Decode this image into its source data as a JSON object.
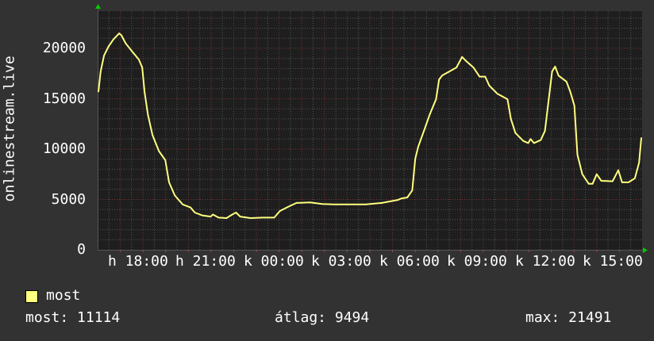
{
  "chart_data": {
    "type": "line",
    "ylabel": "onlinestream.live",
    "ylim": [
      0,
      23700
    ],
    "yticks": [
      0,
      5000,
      10000,
      15000,
      20000
    ],
    "ytick_labels": [
      "0",
      "5000",
      "10000",
      "15000",
      "20000"
    ],
    "xlim": [
      "16:00",
      "16:00 (+24h)"
    ],
    "xtick_labels": [
      "h 18:00",
      "h 21:00",
      "k 00:00",
      "k 03:00",
      "k 06:00",
      "k 09:00",
      "k 12:00",
      "k 15:00"
    ],
    "xtick_times": [
      "18:00",
      "21:00",
      "00:00",
      "03:00",
      "06:00",
      "09:00",
      "12:00",
      "15:00"
    ],
    "grid": true,
    "legend_position": "bottom-left",
    "colors": {
      "background": "#323232",
      "plot_background": "#1e1e1e",
      "line": "#ffff80",
      "grid_minor": "#555555",
      "grid_major": "#7a3535",
      "arrow": "#00cc00"
    },
    "series": [
      {
        "name": "most",
        "points": [
          [
            "16:02",
            15700
          ],
          [
            "16:08",
            17700
          ],
          [
            "16:17",
            19300
          ],
          [
            "16:29",
            20200
          ],
          [
            "16:42",
            20900
          ],
          [
            "16:57",
            21491
          ],
          [
            "17:03",
            21300
          ],
          [
            "17:14",
            20500
          ],
          [
            "17:31",
            19700
          ],
          [
            "17:49",
            18900
          ],
          [
            "17:58",
            18100
          ],
          [
            "18:04",
            15700
          ],
          [
            "18:13",
            13400
          ],
          [
            "18:25",
            11400
          ],
          [
            "18:42",
            9800
          ],
          [
            "18:59",
            8900
          ],
          [
            "19:09",
            6700
          ],
          [
            "19:24",
            5400
          ],
          [
            "19:45",
            4500
          ],
          [
            "20:06",
            4200
          ],
          [
            "20:17",
            3700
          ],
          [
            "20:38",
            3400
          ],
          [
            "20:59",
            3300
          ],
          [
            "21:05",
            3500
          ],
          [
            "21:20",
            3200
          ],
          [
            "21:41",
            3150
          ],
          [
            "21:56",
            3500
          ],
          [
            "22:06",
            3700
          ],
          [
            "22:17",
            3300
          ],
          [
            "22:44",
            3150
          ],
          [
            "23:16",
            3200
          ],
          [
            "23:47",
            3200
          ],
          [
            "00:02",
            3850
          ],
          [
            "00:23",
            4250
          ],
          [
            "00:46",
            4650
          ],
          [
            "01:22",
            4700
          ],
          [
            "01:54",
            4550
          ],
          [
            "02:25",
            4500
          ],
          [
            "03:07",
            4500
          ],
          [
            "03:49",
            4500
          ],
          [
            "04:32",
            4650
          ],
          [
            "05:14",
            4950
          ],
          [
            "05:24",
            5100
          ],
          [
            "05:39",
            5200
          ],
          [
            "05:52",
            5900
          ],
          [
            "06:00",
            9050
          ],
          [
            "06:08",
            10250
          ],
          [
            "06:23",
            11800
          ],
          [
            "06:38",
            13400
          ],
          [
            "06:55",
            14950
          ],
          [
            "07:03",
            16900
          ],
          [
            "07:11",
            17300
          ],
          [
            "07:30",
            17700
          ],
          [
            "07:49",
            18100
          ],
          [
            "08:04",
            19150
          ],
          [
            "08:13",
            18800
          ],
          [
            "08:34",
            18100
          ],
          [
            "08:50",
            17200
          ],
          [
            "09:05",
            17200
          ],
          [
            "09:16",
            16300
          ],
          [
            "09:37",
            15500
          ],
          [
            "09:52",
            15200
          ],
          [
            "10:04",
            14950
          ],
          [
            "10:13",
            13000
          ],
          [
            "10:25",
            11600
          ],
          [
            "10:46",
            10800
          ],
          [
            "10:59",
            10600
          ],
          [
            "11:05",
            11000
          ],
          [
            "11:14",
            10600
          ],
          [
            "11:32",
            10900
          ],
          [
            "11:43",
            11800
          ],
          [
            "11:53",
            14900
          ],
          [
            "12:02",
            17700
          ],
          [
            "12:10",
            18200
          ],
          [
            "12:19",
            17300
          ],
          [
            "12:40",
            16700
          ],
          [
            "12:50",
            15700
          ],
          [
            "13:01",
            14300
          ],
          [
            "13:09",
            9450
          ],
          [
            "13:22",
            7500
          ],
          [
            "13:39",
            6550
          ],
          [
            "13:49",
            6550
          ],
          [
            "14:00",
            7500
          ],
          [
            "14:12",
            6850
          ],
          [
            "14:42",
            6800
          ],
          [
            "14:57",
            7900
          ],
          [
            "15:07",
            6700
          ],
          [
            "15:24",
            6700
          ],
          [
            "15:41",
            7100
          ],
          [
            "15:52",
            8650
          ],
          [
            "15:58",
            11114
          ]
        ]
      }
    ]
  },
  "legend": {
    "series_label": "most"
  },
  "stats": {
    "current": "most: 11114",
    "average": "átlag: 9494",
    "max": "max: 21491"
  }
}
